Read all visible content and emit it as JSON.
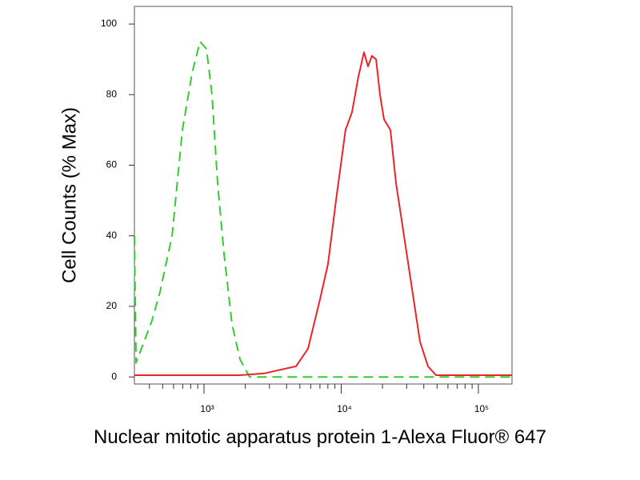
{
  "chart_data": {
    "type": "line",
    "y_label": "Cell Counts (% Max)",
    "x_label": "Nuclear mitotic apparatus protein 1-Alexa Fluor® 647",
    "xscale": "log",
    "xlim": [
      311,
      175800
    ],
    "ylim": [
      -2,
      105
    ],
    "xticks": [
      {
        "value": 1000,
        "label": "10³"
      },
      {
        "value": 10000,
        "label": "10⁴"
      },
      {
        "value": 100000,
        "label": "10⁵"
      }
    ],
    "xminorticks": [
      400,
      500,
      600,
      700,
      800,
      900,
      2000,
      3000,
      4000,
      5000,
      6000,
      7000,
      8000,
      9000,
      20000,
      30000,
      40000,
      50000,
      60000,
      70000,
      80000,
      90000
    ],
    "yticks": [
      0,
      20,
      40,
      60,
      80,
      100
    ],
    "series": [
      {
        "color": "#33cc33",
        "linestyle": "dashed",
        "x": [
          311,
          320,
          366,
          418,
          477,
          585,
          696,
          818,
          935,
          1041,
          1144,
          1256,
          1399,
          1600,
          1830,
          2150,
          175800
        ],
        "values": [
          40,
          4,
          10,
          16,
          24,
          40,
          70,
          86,
          95,
          93,
          80,
          55,
          35,
          15,
          5,
          0,
          0
        ]
      },
      {
        "color": "#e8262a",
        "linestyle": "solid",
        "x": [
          311,
          1830,
          2735,
          4686,
          5728,
          7003,
          8015,
          9163,
          10760,
          11990,
          13340,
          14660,
          15680,
          16760,
          17950,
          19190,
          20510,
          22850,
          25080,
          28690,
          32810,
          37520,
          42950,
          49100,
          175800
        ],
        "values": [
          0.5,
          0.5,
          1,
          3,
          8,
          22,
          32,
          50,
          70,
          75,
          85,
          92,
          88,
          91,
          90,
          80,
          73,
          70,
          55,
          40,
          25,
          10,
          3,
          0.5,
          0.5
        ]
      }
    ]
  }
}
